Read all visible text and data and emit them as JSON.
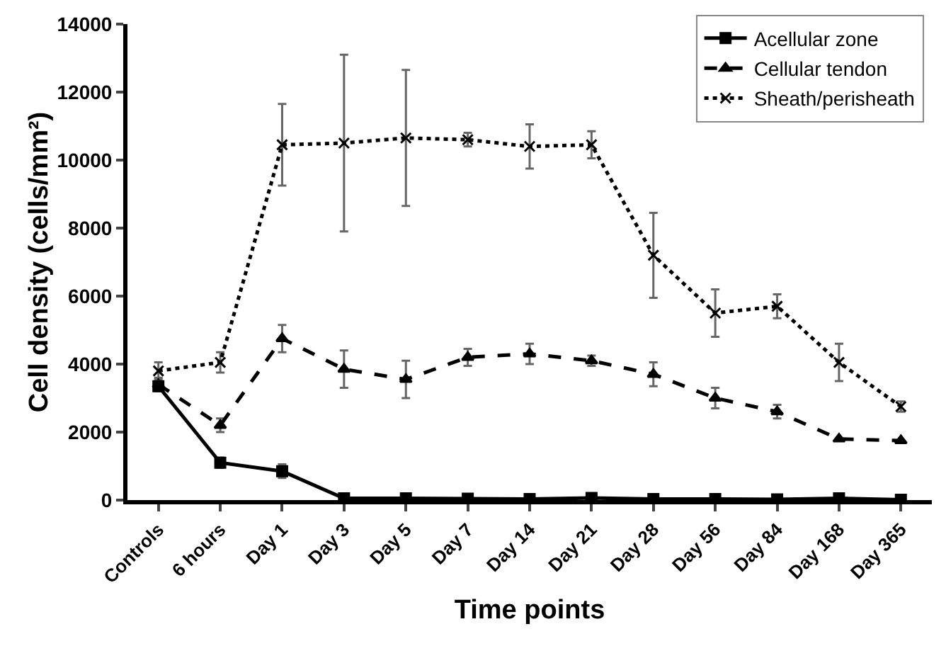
{
  "chart_data": {
    "type": "line",
    "xlabel": "Time points",
    "ylabel": "Cell density (cells/mm²)",
    "categories": [
      "Controls",
      "6 hours",
      "Day 1",
      "Day 3",
      "Day 5",
      "Day 7",
      "Day 14",
      "Day 21",
      "Day 28",
      "Day 56",
      "Day 84",
      "Day 168",
      "Day 365"
    ],
    "ylim": [
      0,
      14000
    ],
    "yticks": [
      0,
      2000,
      4000,
      6000,
      8000,
      10000,
      12000,
      14000
    ],
    "grid": false,
    "legend": "top right",
    "series": [
      {
        "name": "Acellular zone",
        "color": "#000000",
        "marker": "square",
        "line_style": "solid",
        "values": [
          3350,
          1100,
          850,
          50,
          50,
          40,
          30,
          60,
          30,
          30,
          20,
          50,
          10
        ],
        "errors": [
          150,
          150,
          200,
          null,
          null,
          null,
          null,
          null,
          null,
          null,
          null,
          null,
          null
        ]
      },
      {
        "name": "Cellular tendon",
        "color": "#000000",
        "marker": "triangle",
        "line_style": "dashed",
        "values": [
          3400,
          2200,
          4750,
          3850,
          3550,
          4200,
          4300,
          4100,
          3700,
          3000,
          2600,
          1800,
          1750
        ],
        "errors": [
          200,
          200,
          400,
          550,
          550,
          250,
          300,
          150,
          350,
          300,
          200,
          null,
          null
        ]
      },
      {
        "name": "Sheath/perisheath",
        "color": "#000000",
        "marker": "cross",
        "line_style": "dotted",
        "values": [
          3800,
          4050,
          10450,
          10500,
          10650,
          10600,
          10400,
          10450,
          7200,
          5500,
          5700,
          4050,
          2750
        ],
        "errors": [
          250,
          300,
          1200,
          2600,
          2000,
          200,
          650,
          400,
          1250,
          700,
          350,
          550,
          150
        ]
      }
    ]
  }
}
